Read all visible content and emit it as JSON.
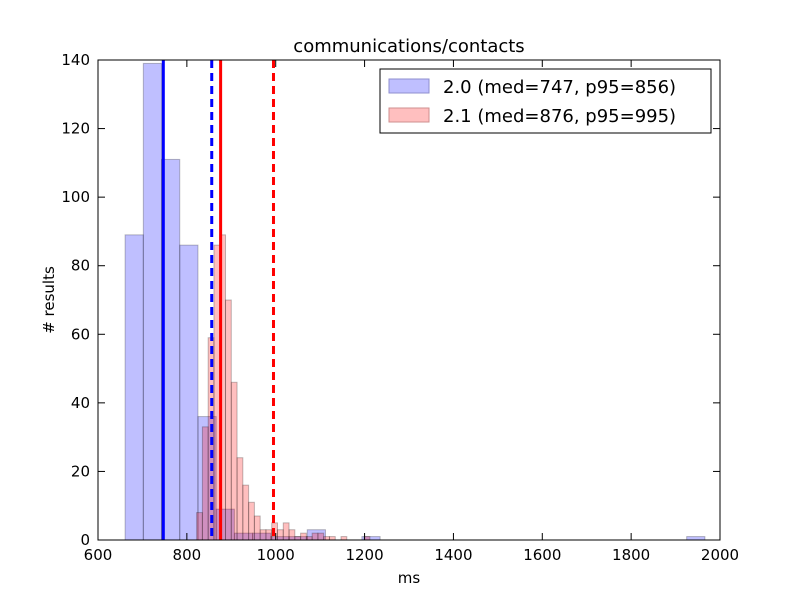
{
  "chart_data": {
    "type": "histogram",
    "title": "communications/contacts",
    "xlabel": "ms",
    "ylabel": "# results",
    "xlim": [
      600,
      2000
    ],
    "ylim": [
      0,
      140
    ],
    "xticks": [
      600,
      800,
      1000,
      1200,
      1400,
      1600,
      1800,
      2000
    ],
    "yticks": [
      0,
      20,
      40,
      60,
      80,
      100,
      120,
      140
    ],
    "grid": false,
    "legend_position": "top-right",
    "series": [
      {
        "name": "2.0 (med=747, p95=856)",
        "color": "#0000ff",
        "fill_color": "#bfbfff",
        "alpha": 0.25,
        "median": 747,
        "p95": 856,
        "bins": [
          {
            "x0": 661,
            "x1": 702,
            "count": 89
          },
          {
            "x0": 702,
            "x1": 743,
            "count": 139
          },
          {
            "x0": 743,
            "x1": 784,
            "count": 111
          },
          {
            "x0": 784,
            "x1": 825,
            "count": 86
          },
          {
            "x0": 825,
            "x1": 866,
            "count": 36
          },
          {
            "x0": 866,
            "x1": 907,
            "count": 9
          },
          {
            "x0": 907,
            "x1": 948,
            "count": 2
          },
          {
            "x0": 948,
            "x1": 989,
            "count": 2
          },
          {
            "x0": 989,
            "x1": 1030,
            "count": 1
          },
          {
            "x0": 1030,
            "x1": 1071,
            "count": 1
          },
          {
            "x0": 1071,
            "x1": 1112,
            "count": 3
          },
          {
            "x0": 1112,
            "x1": 1153,
            "count": 0
          },
          {
            "x0": 1153,
            "x1": 1194,
            "count": 0
          },
          {
            "x0": 1194,
            "x1": 1235,
            "count": 1
          },
          {
            "x0": 1925,
            "x1": 1966,
            "count": 1
          }
        ]
      },
      {
        "name": "2.1 (med=876, p95=995)",
        "color": "#ff0000",
        "fill_color": "#ffbfbf",
        "alpha": 0.25,
        "median": 876,
        "p95": 995,
        "bins": [
          {
            "x0": 822,
            "x1": 835,
            "count": 8
          },
          {
            "x0": 835,
            "x1": 848,
            "count": 33
          },
          {
            "x0": 848,
            "x1": 861,
            "count": 59
          },
          {
            "x0": 861,
            "x1": 874,
            "count": 86
          },
          {
            "x0": 874,
            "x1": 887,
            "count": 89
          },
          {
            "x0": 887,
            "x1": 900,
            "count": 70
          },
          {
            "x0": 900,
            "x1": 913,
            "count": 46
          },
          {
            "x0": 913,
            "x1": 926,
            "count": 24
          },
          {
            "x0": 926,
            "x1": 939,
            "count": 16
          },
          {
            "x0": 939,
            "x1": 952,
            "count": 11
          },
          {
            "x0": 952,
            "x1": 965,
            "count": 7
          },
          {
            "x0": 965,
            "x1": 978,
            "count": 3
          },
          {
            "x0": 978,
            "x1": 991,
            "count": 3
          },
          {
            "x0": 991,
            "x1": 1004,
            "count": 5
          },
          {
            "x0": 1004,
            "x1": 1017,
            "count": 3
          },
          {
            "x0": 1017,
            "x1": 1030,
            "count": 5
          },
          {
            "x0": 1030,
            "x1": 1043,
            "count": 3
          },
          {
            "x0": 1043,
            "x1": 1056,
            "count": 1
          },
          {
            "x0": 1056,
            "x1": 1069,
            "count": 2
          },
          {
            "x0": 1069,
            "x1": 1082,
            "count": 1
          },
          {
            "x0": 1082,
            "x1": 1095,
            "count": 2
          },
          {
            "x0": 1095,
            "x1": 1108,
            "count": 2
          },
          {
            "x0": 1108,
            "x1": 1121,
            "count": 1
          },
          {
            "x0": 1121,
            "x1": 1134,
            "count": 1
          },
          {
            "x0": 1147,
            "x1": 1160,
            "count": 1
          },
          {
            "x0": 1199,
            "x1": 1212,
            "count": 1
          }
        ]
      }
    ]
  }
}
